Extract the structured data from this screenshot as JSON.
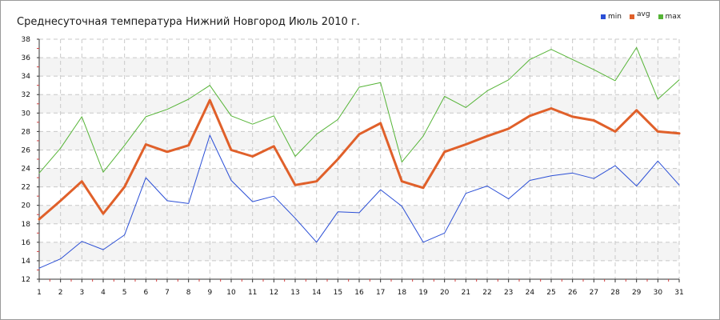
{
  "chart_data": {
    "type": "line",
    "title": "Среднесуточная температура Нижний Новгород  Июль 2010 г.",
    "xlabel": "",
    "ylabel": "",
    "x": [
      1,
      2,
      3,
      4,
      5,
      6,
      7,
      8,
      9,
      10,
      11,
      12,
      13,
      14,
      15,
      16,
      17,
      18,
      19,
      20,
      21,
      22,
      23,
      24,
      25,
      26,
      27,
      28,
      29,
      30,
      31
    ],
    "ylim": [
      12,
      38
    ],
    "yticks": [
      12,
      14,
      16,
      18,
      20,
      22,
      24,
      26,
      28,
      30,
      32,
      34,
      36,
      38
    ],
    "grid": true,
    "legend_position": "top-right",
    "series": [
      {
        "name": "min",
        "color": "#2b4fd6",
        "values": [
          13.2,
          14.2,
          16.1,
          15.2,
          16.8,
          23.0,
          20.5,
          20.2,
          27.6,
          22.7,
          20.4,
          21.0,
          18.6,
          16.0,
          19.3,
          19.2,
          21.7,
          19.9,
          16.0,
          17.0,
          21.3,
          22.1,
          20.7,
          22.7,
          23.2,
          23.5,
          22.9,
          24.3,
          22.1,
          24.8,
          22.2
        ]
      },
      {
        "name": "avg",
        "color": "#e0602a",
        "values": [
          18.5,
          20.5,
          22.6,
          19.1,
          22.0,
          26.6,
          25.8,
          26.5,
          31.4,
          26.0,
          25.3,
          26.4,
          22.2,
          22.6,
          25.0,
          27.7,
          28.9,
          22.6,
          21.9,
          25.8,
          26.6,
          27.5,
          28.3,
          29.7,
          30.5,
          29.6,
          29.2,
          28.0,
          30.3,
          28.0,
          27.8
        ]
      },
      {
        "name": "max",
        "color": "#55b436",
        "values": [
          23.5,
          26.2,
          29.6,
          23.6,
          26.5,
          29.6,
          30.4,
          31.5,
          33.0,
          29.7,
          28.8,
          29.7,
          25.3,
          27.7,
          29.3,
          32.8,
          33.3,
          24.7,
          27.5,
          31.8,
          30.6,
          32.4,
          33.6,
          35.8,
          36.9,
          35.8,
          34.7,
          33.5,
          37.1,
          31.5,
          33.6
        ]
      }
    ]
  }
}
